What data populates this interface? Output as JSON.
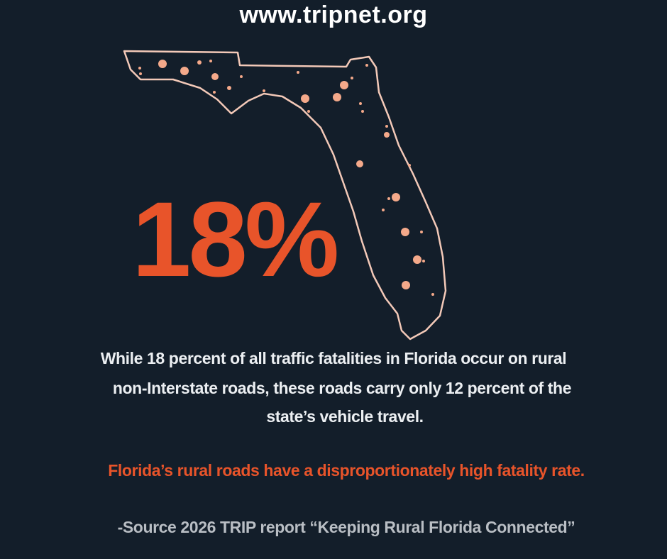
{
  "header": {
    "url": "www.tripnet.org"
  },
  "stat": "18%",
  "body_lines": [
    "While 18 percent of all traffic fatalities in Florida occur on rural",
    "non-Interstate roads, these roads carry only 12 percent of the",
    "state’s vehicle travel."
  ],
  "highlight": "Florida’s rural roads have a disproportionately high fatality rate.",
  "source": "-Source 2026 TRIP report “Keeping Rural Florida Connected”"
}
